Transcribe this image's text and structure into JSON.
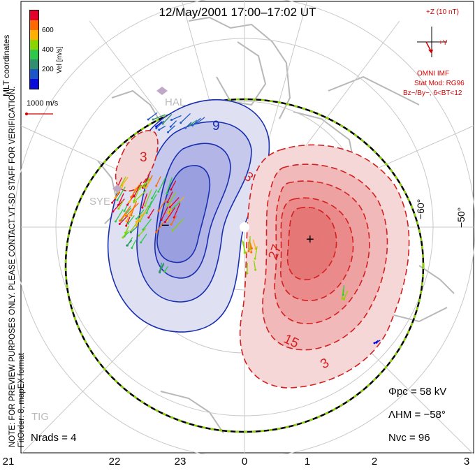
{
  "title": "12/May/2001 17:00–17:02 UT",
  "colorbar": {
    "label": "Vel [m/s]",
    "ticks": [
      "600",
      "400",
      "200"
    ],
    "colors": [
      "#e4002b",
      "#ff6a00",
      "#ffb000",
      "#8ad400",
      "#2ec84a",
      "#2f8f6e",
      "#1c55c8",
      "#0a0adc"
    ]
  },
  "mlt_coordinates_label": "MLT coordinates",
  "velocity_scale": "1000 m/s",
  "imf": {
    "z_label": "+Z (10 nT)",
    "y_label": "+Y",
    "source": "OMNI IMF",
    "model": "Stat Mod: RG96",
    "condition": "Bz−/By−, 6<BT<12"
  },
  "latitude_labels": [
    "−60°",
    "−50°"
  ],
  "mlt_ticks": [
    "21",
    "22",
    "23",
    "0",
    "1",
    "2",
    "3"
  ],
  "radars": [
    "HAL",
    "SYE",
    "TIG"
  ],
  "contour_labels": [
    "9",
    "3",
    "3",
    "27",
    "15",
    "3"
  ],
  "cell_markers": {
    "minus": "−",
    "plus": "+"
  },
  "note": "NOTE: FOR PREVIEW PURPOSES ONLY. PLEASE CONTACT VT-SD STAFF FOR VERIFICATION.",
  "fit_info": "FitOrder: 8, mapEX format",
  "stats": {
    "phi_pc": "Φpc = 58 kV",
    "lambda_hm": "ΛHM = −58°",
    "n_vc": "Nvc = 96",
    "n_rads": "Nrads = 4"
  }
}
